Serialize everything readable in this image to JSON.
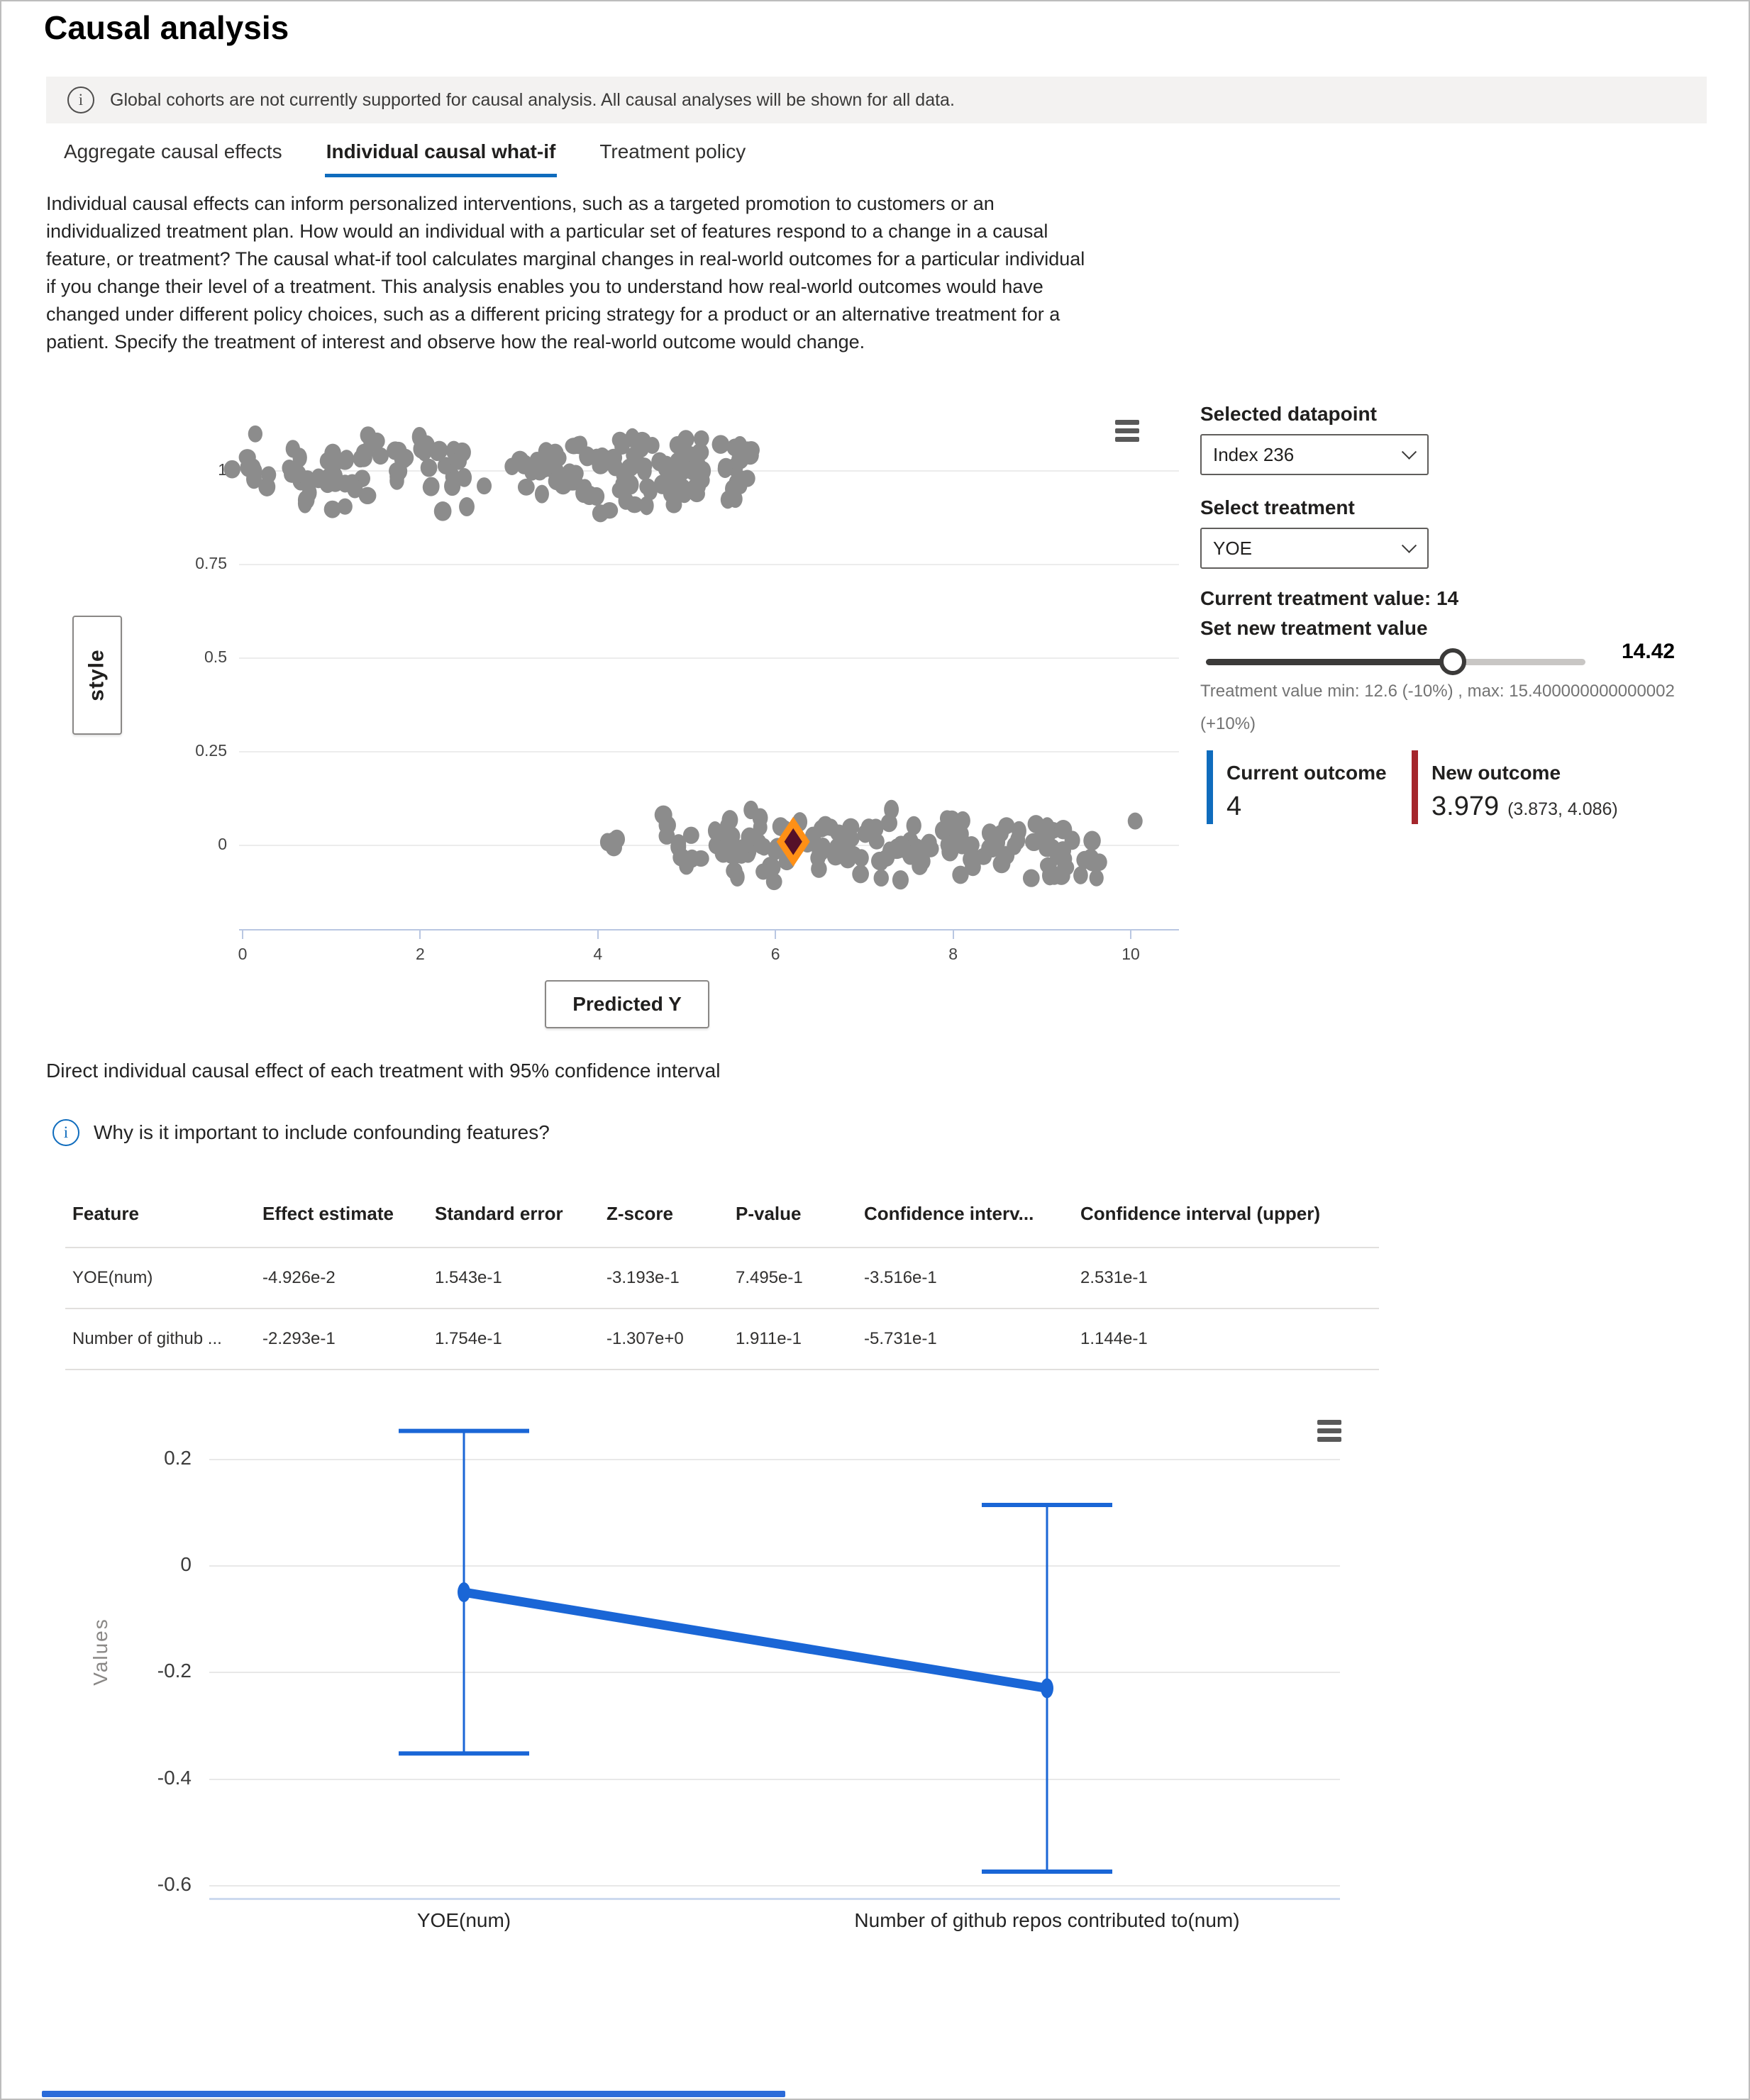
{
  "page": {
    "title": "Causal analysis"
  },
  "banner": {
    "text": "Global cohorts are not currently supported for causal analysis. All causal analyses will be shown for all data."
  },
  "tabs": [
    {
      "label": "Aggregate causal effects",
      "active": false
    },
    {
      "label": "Individual causal what-if",
      "active": true
    },
    {
      "label": "Treatment policy",
      "active": false
    }
  ],
  "description": "Individual causal effects can inform personalized interventions, such as a targeted promotion to customers or an individualized treatment plan. How would an individual with a particular set of features respond to a change in a causal feature, or treatment? The causal what-if tool calculates marginal changes in real-world outcomes for a particular individual if you change their level of a treatment. This analysis enables you to understand how real-world outcomes would have changed under different policy choices, such as a different pricing strategy for a product or an alternative treatment for a patient. Specify the treatment of interest and observe how the real-world outcome would change.",
  "whatif": {
    "selected_datapoint_label": "Selected datapoint",
    "selected_datapoint_value": "Index 236",
    "select_treatment_label": "Select treatment",
    "treatment_value": "YOE",
    "current_treatment_text": "Current treatment value: 14",
    "set_new_treatment_label": "Set new treatment value",
    "slider_value": "14.42",
    "slider_percent": 65,
    "range_note_line1": "Treatment value min: 12.6 (-10%) , max: 15.400000000000002",
    "range_note_line2": "(+10%)",
    "current_outcome": {
      "label": "Current outcome",
      "value": "4",
      "color": "#0f6cbd"
    },
    "new_outcome": {
      "label": "New outcome",
      "value": "3.979",
      "ci": "(3.873, 4.086)",
      "color": "#a4262c"
    }
  },
  "section": {
    "heading": "Direct individual causal effect of each treatment with 95% confidence interval",
    "info_link": "Why is it important to include confounding features?"
  },
  "table": {
    "columns": [
      "Feature",
      "Effect estimate",
      "Standard error",
      "Z-score",
      "P-value",
      "Confidence interv...",
      "Confidence interval (upper)"
    ],
    "rows": [
      [
        "YOE(num)",
        "-4.926e-2",
        "1.543e-1",
        "-3.193e-1",
        "7.495e-1",
        "-3.516e-1",
        "2.531e-1"
      ],
      [
        "Number of github ...",
        "-2.293e-1",
        "1.754e-1",
        "-1.307e+0",
        "1.911e-1",
        "-5.731e-1",
        "1.144e-1"
      ]
    ]
  },
  "chart_data": [
    {
      "type": "scatter",
      "title": "",
      "xlabel": "Predicted Y",
      "ylabel": "style",
      "x_ticks": [
        0,
        2,
        4,
        6,
        8,
        10
      ],
      "y_ticks": [
        1,
        0.75,
        0.5,
        0.25,
        0
      ],
      "xlim": [
        -0.6,
        10.6
      ],
      "ylim": [
        -0.25,
        1.25
      ],
      "grid": true,
      "point_color": "#8c8c8c",
      "clusters": [
        {
          "count": 72,
          "x_min": -0.15,
          "x_max": 2.58,
          "y_center": 1,
          "y_jitter": 0.115
        },
        {
          "count": 112,
          "x_min": 3.02,
          "x_max": 5.75,
          "y_center": 1,
          "y_jitter": 0.115
        },
        {
          "count": 14,
          "x_min": 4.05,
          "x_max": 5.3,
          "y_center": 0,
          "y_jitter": 0.1
        },
        {
          "count": 152,
          "x_min": 5.3,
          "x_max": 9.65,
          "y_center": 0,
          "y_jitter": 0.115
        }
      ],
      "extra_points": [
        [
          2.72,
          0.96
        ],
        [
          10.05,
          0.065
        ]
      ],
      "selected_point": {
        "x": 6.2,
        "y": 0.01,
        "marker": "diamond",
        "fill": "#551029",
        "stroke": "#ff9016"
      }
    },
    {
      "type": "line",
      "title": "Direct individual causal effect of each treatment with 95% confidence interval",
      "categories": [
        "YOE(num)",
        "Number of github repos contributed to(num)"
      ],
      "values": [
        -0.04926,
        -0.2293
      ],
      "ci_lower": [
        -0.3516,
        -0.5731
      ],
      "ci_upper": [
        0.2531,
        0.1144
      ],
      "xlabel": "",
      "ylabel": "Values",
      "y_ticks": [
        0.2,
        0,
        -0.2,
        -0.4,
        -0.6
      ],
      "ylim": [
        -0.66,
        0.29
      ],
      "grid": true,
      "legend": "none",
      "line_color": "#1a66d6"
    }
  ]
}
